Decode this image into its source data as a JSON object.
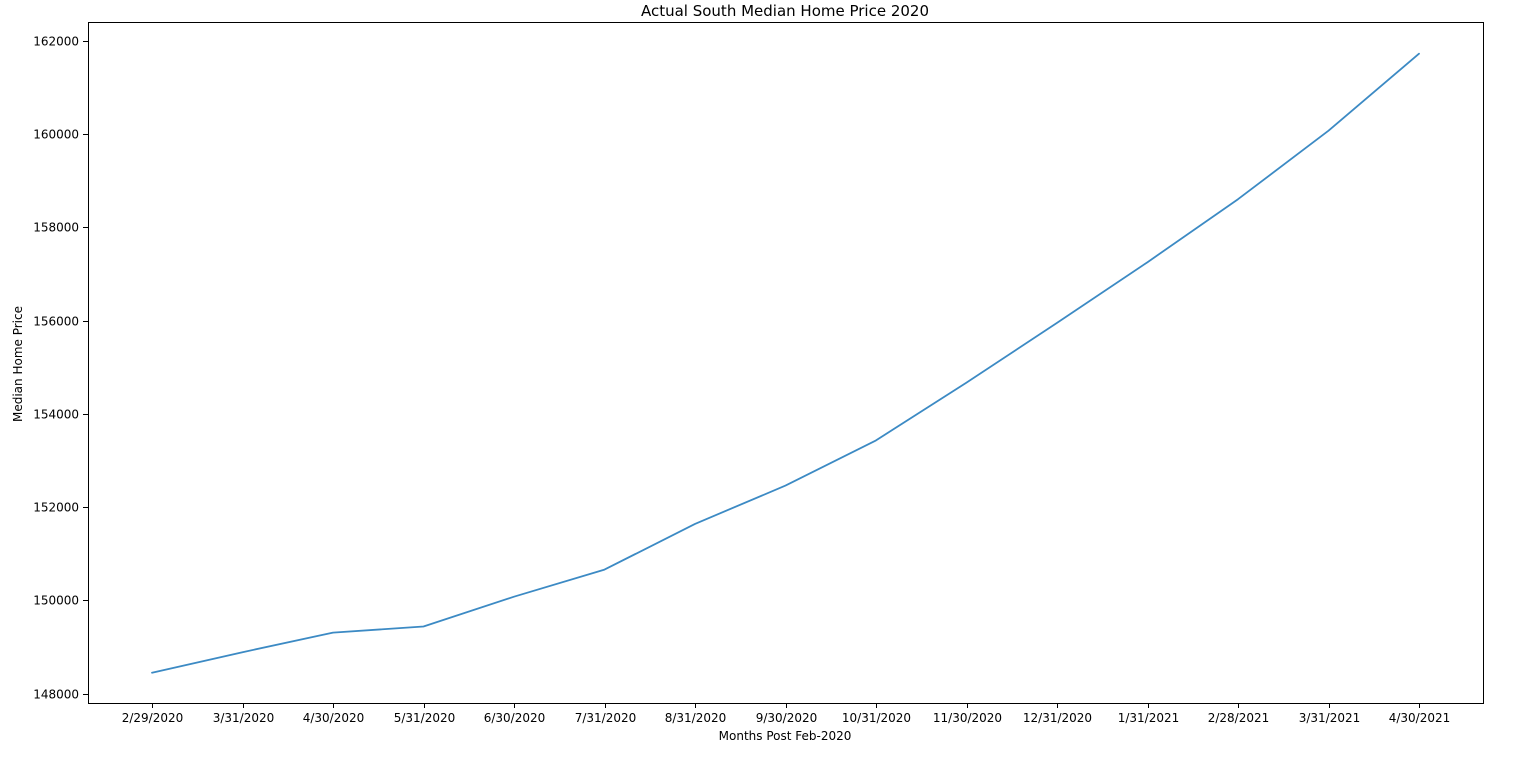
{
  "chart_data": {
    "type": "line",
    "title": "Actual South Median Home Price 2020",
    "xlabel": "Months Post Feb-2020",
    "ylabel": "Median Home Price",
    "categories": [
      "2/29/2020",
      "3/31/2020",
      "4/30/2020",
      "5/31/2020",
      "6/30/2020",
      "7/31/2020",
      "8/31/2020",
      "9/30/2020",
      "10/31/2020",
      "11/30/2020",
      "12/31/2020",
      "1/31/2021",
      "2/28/2021",
      "3/31/2021",
      "4/30/2021"
    ],
    "series": [
      {
        "values": [
          148450,
          148890,
          149310,
          149440,
          150080,
          150660,
          151640,
          152460,
          153430,
          154670,
          155950,
          157250,
          158600,
          160070,
          161720
        ]
      }
    ],
    "yticks": [
      148000,
      150000,
      152000,
      154000,
      156000,
      158000,
      160000,
      162000
    ],
    "ylim": [
      147800,
      162400
    ],
    "grid": false,
    "legend": "none",
    "colors": {
      "line": "#3c8ac4",
      "axis": "#000000",
      "background": "#ffffff"
    }
  }
}
